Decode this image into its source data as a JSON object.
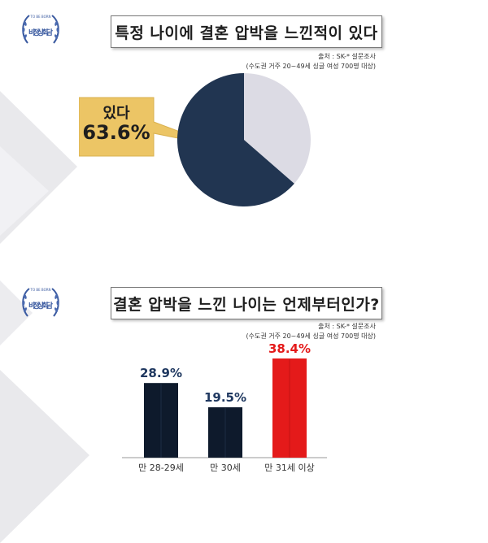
{
  "logo": {
    "text": "비정상회담",
    "top_text": "TO BE BORN"
  },
  "colors": {
    "pie_yes": "#213551",
    "pie_no": "#DCDBE4",
    "callout": "#ECC565",
    "bar_dark": "#0E1A2C",
    "bar_red": "#E41A1A"
  },
  "chart_data": [
    {
      "type": "pie",
      "title": "특정 나이에 결혼 압박을 느낀적이 있다",
      "source": [
        "출처 : SK-* 설문조사",
        "(수도권 거주 20~49세 싱글 여성 700명 대상)"
      ],
      "slices": [
        {
          "label": "있다",
          "value": 63.6,
          "value_label": "63.6%",
          "color": "#213551"
        },
        {
          "label": "",
          "value": 36.4,
          "color": "#DCDBE4"
        }
      ]
    },
    {
      "type": "bar",
      "title": "결혼 압박을 느낀 나이는 언제부터인가?",
      "source": [
        "출처 : SK-* 설문조사",
        "(수도권 거주 20~49세 싱글 여성 700명 대상)"
      ],
      "categories": [
        "만 28-29세",
        "만 30세",
        "만 31세 이상"
      ],
      "values": [
        28.9,
        19.5,
        38.4
      ],
      "value_labels": [
        "28.9%",
        "19.5%",
        "38.4%"
      ],
      "value_label_colors": [
        "#1F3860",
        "#1F3860",
        "#E41A1A"
      ],
      "bar_colors": [
        "#0E1A2C",
        "#0E1A2C",
        "#E41A1A"
      ],
      "ylim": [
        0,
        40
      ]
    }
  ]
}
